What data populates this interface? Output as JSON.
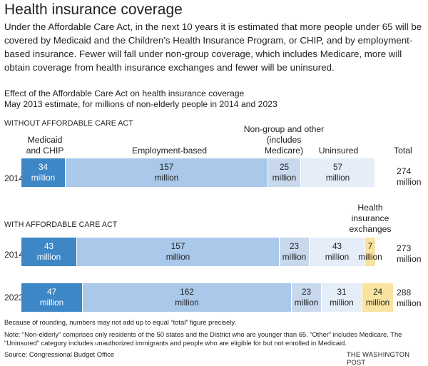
{
  "header": {
    "title": "Health insurance coverage",
    "intro": "Under the Affordable Care Act, in the next 10 years it is estimated that more people under 65 will be covered by Medicaid and the Children’s Health Insurance Program, or CHIP, and by employment-based insurance. Fewer will fall under non-group coverage, which includes Medicare, more will obtain coverage from health insurance exchanges and fewer will be uninsured.",
    "subtitle_line1": "Effect of the Affordable Care Act on health insurance coverage",
    "subtitle_line2": "May 2013 estimate, for millions of non-elderly people in 2014 and 2023"
  },
  "labels": {
    "without_section": "WITHOUT AFFORDABLE CARE ACT",
    "with_section": "WITH AFFORDABLE CARE ACT",
    "col_medicaid_1": "Medicaid",
    "col_medicaid_2": "and CHIP",
    "col_employment": "Employment-based",
    "col_nongroup_1": "Non-group and other",
    "col_nongroup_2": "(includes",
    "col_nongroup_3": "Medicare)",
    "col_uninsured": "Uninsured",
    "col_total": "Total",
    "col_exchanges_1": "Health",
    "col_exchanges_2": "insurance",
    "col_exchanges_3": "exchanges",
    "unit": "million"
  },
  "chart_data": {
    "type": "bar",
    "stacked": true,
    "orientation": "horizontal",
    "title": "Effect of the Affordable Care Act on health insurance coverage",
    "subtitle": "May 2013 estimate, for millions of non-elderly people in 2014 and 2023",
    "categories_order": [
      "Medicaid and CHIP",
      "Employment-based",
      "Non-group and other (includes Medicare)",
      "Uninsured",
      "Health insurance exchanges"
    ],
    "colors": {
      "Medicaid and CHIP": "#3d87c6",
      "Employment-based": "#a9c8ea",
      "Non-group and other (includes Medicare)": "#c8d9ee",
      "Uninsured": "#e4edf8",
      "Health insurance exchanges": "#f9e3a0"
    },
    "groups": [
      {
        "name": "WITHOUT AFFORDABLE CARE ACT",
        "rows": [
          {
            "year": "2014",
            "total": 274,
            "segments": [
              {
                "name": "Medicaid and CHIP",
                "value": 34
              },
              {
                "name": "Employment-based",
                "value": 157
              },
              {
                "name": "Non-group and other (includes Medicare)",
                "value": 25
              },
              {
                "name": "Uninsured",
                "value": 57
              }
            ]
          }
        ]
      },
      {
        "name": "WITH AFFORDABLE CARE ACT",
        "rows": [
          {
            "year": "2014",
            "total": 273,
            "segments": [
              {
                "name": "Medicaid and CHIP",
                "value": 43
              },
              {
                "name": "Employment-based",
                "value": 157
              },
              {
                "name": "Non-group and other (includes Medicare)",
                "value": 23
              },
              {
                "name": "Uninsured",
                "value": 43
              },
              {
                "name": "Health insurance exchanges",
                "value": 7
              }
            ]
          },
          {
            "year": "2023",
            "total": 288,
            "segments": [
              {
                "name": "Medicaid and CHIP",
                "value": 47
              },
              {
                "name": "Employment-based",
                "value": 162
              },
              {
                "name": "Non-group and other (includes Medicare)",
                "value": 23
              },
              {
                "name": "Uninsured",
                "value": 31
              },
              {
                "name": "Health insurance exchanges",
                "value": 24
              }
            ]
          }
        ]
      }
    ]
  },
  "footer": {
    "rounding_note": "Because of rounding, numbers may not add up to equal “total” figure precisely.",
    "note": "Note: “Non-elderly” comprises only residents of the 50 states and the District who are younger than 65. “Other” includes Medicare. The “Uninsured” category includes unauthorized immigrants and people who are eligible for but not enrolled in Medicaid.",
    "source": "Source: Congressional Budget Office",
    "credit": "THE WASHINGTON POST"
  }
}
